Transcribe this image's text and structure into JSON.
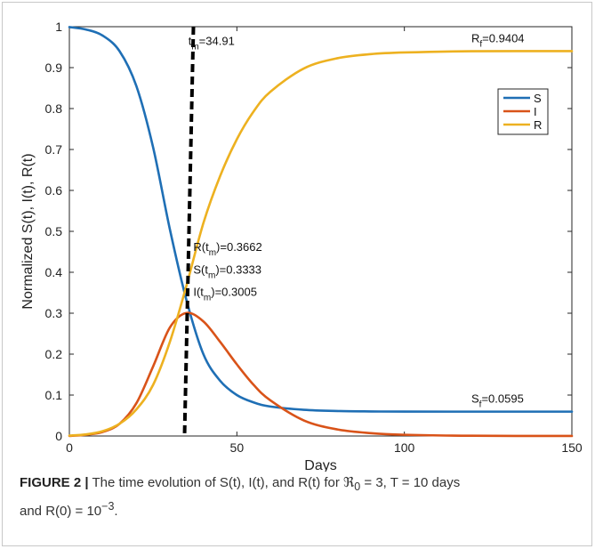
{
  "chart_data": {
    "type": "line",
    "xlabel": "Days",
    "ylabel": "Normalized S(t), I(t), R(t)",
    "xlim": [
      0,
      150
    ],
    "ylim": [
      0,
      1
    ],
    "xticks": [
      0,
      50,
      100,
      150
    ],
    "yticks": [
      0,
      0.1,
      0.2,
      0.3,
      0.4,
      0.5,
      0.6,
      0.7,
      0.8,
      0.9,
      1
    ],
    "grid": false,
    "legend_position": "top-right",
    "colors": {
      "S": "#1f6fb5",
      "I": "#d95319",
      "R": "#edb120",
      "tm_line": "#000000"
    },
    "series": [
      {
        "name": "S",
        "x": [
          0,
          5,
          10,
          15,
          20,
          25,
          30,
          34.91,
          40,
          45,
          50,
          55,
          60,
          70,
          80,
          90,
          100,
          120,
          150
        ],
        "y": [
          0.999,
          0.993,
          0.978,
          0.94,
          0.855,
          0.705,
          0.505,
          0.3333,
          0.2,
          0.135,
          0.1,
          0.082,
          0.072,
          0.064,
          0.061,
          0.06,
          0.0596,
          0.0595,
          0.0595
        ]
      },
      {
        "name": "I",
        "x": [
          0,
          5,
          10,
          15,
          20,
          25,
          30,
          34.91,
          40,
          45,
          50,
          55,
          60,
          70,
          80,
          90,
          100,
          120,
          150
        ],
        "y": [
          0.0001,
          0.003,
          0.01,
          0.03,
          0.08,
          0.17,
          0.265,
          0.3005,
          0.28,
          0.23,
          0.175,
          0.125,
          0.087,
          0.038,
          0.016,
          0.007,
          0.003,
          0.0006,
          0.0001
        ]
      },
      {
        "name": "R",
        "x": [
          0,
          5,
          10,
          15,
          20,
          25,
          30,
          34.91,
          40,
          45,
          50,
          55,
          60,
          70,
          80,
          90,
          100,
          120,
          150
        ],
        "y": [
          0.001,
          0.004,
          0.012,
          0.03,
          0.065,
          0.125,
          0.23,
          0.3662,
          0.52,
          0.635,
          0.725,
          0.793,
          0.841,
          0.898,
          0.923,
          0.933,
          0.937,
          0.9401,
          0.9404
        ]
      }
    ],
    "vline": {
      "x": 34.91
    },
    "annotations": {
      "tm": {
        "base": "t",
        "sub": "m",
        "rest": "=34.91",
        "x": 35.5,
        "y": 0.955
      },
      "rf": {
        "base": "R",
        "sub": "f",
        "rest": "=0.9404",
        "x": 120,
        "y": 0.962
      },
      "sf": {
        "base": "S",
        "sub": "f",
        "rest": "=0.0595",
        "x": 120,
        "y": 0.082
      },
      "rtm": {
        "base": "R(t",
        "sub": "m",
        "rest": ")=0.3662",
        "x": 37,
        "y": 0.452
      },
      "stm": {
        "base": "S(t",
        "sub": "m",
        "rest": ")=0.3333",
        "x": 37,
        "y": 0.397
      },
      "itm": {
        "base": "I(t",
        "sub": "m",
        "rest": ")=0.3005",
        "x": 37,
        "y": 0.342
      }
    }
  },
  "caption": {
    "lead": "FIGURE 2 |",
    "text1": " The time evolution of S(t), I(t), and R(t) for ",
    "r0": "ℜ",
    "r0_sub": "0",
    "text2": " = 3, T = 10 days",
    "text3": "and R(0) = 10",
    "exp": "−3",
    "text4": "."
  }
}
